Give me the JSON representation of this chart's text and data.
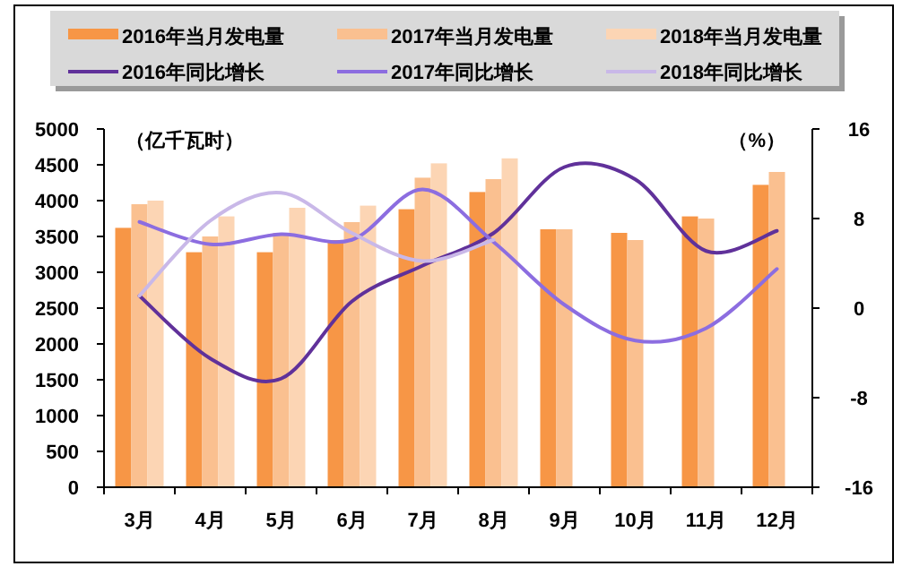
{
  "chart_data": {
    "type": "bar",
    "categories": [
      "3月",
      "4月",
      "5月",
      "6月",
      "7月",
      "8月",
      "9月",
      "10月",
      "11月",
      "12月"
    ],
    "series": [
      {
        "name": "2016年当月发电量",
        "color": "#f79646",
        "values": [
          3620,
          3280,
          3280,
          3450,
          3880,
          4120,
          3600,
          3550,
          3780,
          4220
        ]
      },
      {
        "name": "2017年当月发电量",
        "color": "#fac090",
        "values": [
          3950,
          3500,
          3550,
          3700,
          4320,
          4300,
          3600,
          3450,
          3750,
          4400
        ]
      },
      {
        "name": "2018年当月发电量",
        "color": "#fcd5b4",
        "values": [
          4000,
          3780,
          3900,
          3930,
          4520,
          4590,
          null,
          null,
          null,
          null
        ]
      },
      {
        "name": "2016年同比增长",
        "type": "line",
        "axis": "y2",
        "color": "#60319a",
        "values": [
          1.1,
          -4.5,
          -6.3,
          0.6,
          3.8,
          6.7,
          12.6,
          11.5,
          5.1,
          6.9
        ]
      },
      {
        "name": "2017年同比增长",
        "type": "line",
        "axis": "y2",
        "color": "#8c6de0",
        "values": [
          7.7,
          5.7,
          6.6,
          6.1,
          10.6,
          5.9,
          0.3,
          -2.9,
          -1.8,
          3.5
        ]
      },
      {
        "name": "2018年同比增长",
        "type": "line",
        "axis": "y2",
        "color": "#c9b8e8",
        "values": [
          1.1,
          7.8,
          10.3,
          6.7,
          4.2,
          6.1,
          null,
          null,
          null,
          null
        ]
      }
    ],
    "ylim": [
      0,
      5000
    ],
    "yticks": [
      0,
      500,
      1000,
      1500,
      2000,
      2500,
      3000,
      3500,
      4000,
      4500,
      5000
    ],
    "y2lim": [
      -16,
      16
    ],
    "y2ticks": [
      -16,
      -8,
      0,
      8,
      16
    ],
    "legend": "top",
    "marker": "none",
    "line_style": "solid",
    "annotations": [
      "（亿千瓦时）",
      "（%）"
    ]
  }
}
